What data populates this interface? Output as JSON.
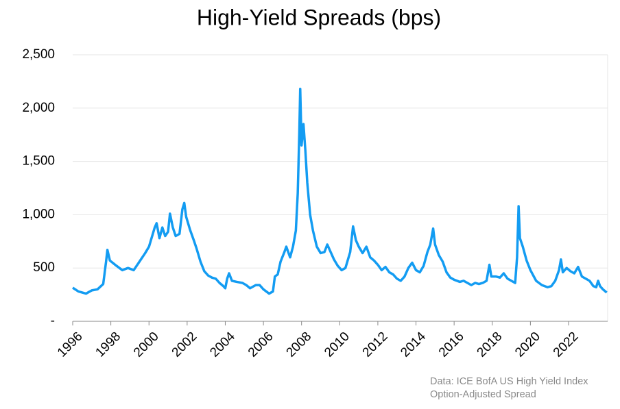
{
  "chart_data": {
    "type": "line",
    "title": "High-Yield Spreads (bps)",
    "notes": [
      "Data: ICE BofA US High Yield Index",
      "Option-Adjusted Spread"
    ],
    "xlim": [
      1996,
      2024.05
    ],
    "xticks": [
      1996,
      1998,
      2000,
      2002,
      2004,
      2006,
      2008,
      2010,
      2012,
      2014,
      2016,
      2018,
      2020,
      2022
    ],
    "ylim": [
      0,
      2500
    ],
    "yticks": [
      {
        "value": 0,
        "label": "-"
      },
      500,
      {
        "value": 1000,
        "label": "1,000"
      },
      {
        "value": 1500,
        "label": "1,500"
      },
      {
        "value": 2000,
        "label": "2,000"
      },
      {
        "value": 2500,
        "label": "2,500"
      }
    ],
    "grid": true,
    "series": [
      {
        "color": "#139cf2",
        "x": [
          1996.0,
          1996.3,
          1996.7,
          1997.0,
          1997.3,
          1997.6,
          1997.75,
          1997.82,
          1997.95,
          1998.3,
          1998.6,
          1998.9,
          1999.2,
          1999.5,
          1999.8,
          2000.0,
          2000.3,
          2000.4,
          2000.55,
          2000.7,
          2000.85,
          2001.0,
          2001.1,
          2001.25,
          2001.4,
          2001.6,
          2001.75,
          2001.85,
          2001.95,
          2002.15,
          2002.35,
          2002.5,
          2002.7,
          2002.9,
          2003.1,
          2003.3,
          2003.5,
          2003.7,
          2003.9,
          2004.0,
          2004.1,
          2004.2,
          2004.35,
          2004.6,
          2004.9,
          2005.1,
          2005.3,
          2005.6,
          2005.8,
          2006.0,
          2006.3,
          2006.5,
          2006.6,
          2006.75,
          2006.9,
          2007.1,
          2007.2,
          2007.4,
          2007.55,
          2007.7,
          2007.8,
          2007.88,
          2007.93,
          2008.0,
          2008.1,
          2008.2,
          2008.3,
          2008.45,
          2008.6,
          2008.8,
          2009.0,
          2009.2,
          2009.35,
          2009.5,
          2009.7,
          2009.9,
          2010.1,
          2010.3,
          2010.55,
          2010.7,
          2010.85,
          2011.0,
          2011.2,
          2011.4,
          2011.6,
          2011.8,
          2012.0,
          2012.2,
          2012.4,
          2012.6,
          2012.8,
          2013.0,
          2013.2,
          2013.4,
          2013.6,
          2013.8,
          2014.0,
          2014.2,
          2014.4,
          2014.6,
          2014.75,
          2014.9,
          2015.0,
          2015.2,
          2015.4,
          2015.6,
          2015.8,
          2016.0,
          2016.3,
          2016.5,
          2016.7,
          2016.9,
          2017.1,
          2017.3,
          2017.5,
          2017.7,
          2017.85,
          2017.95,
          2018.2,
          2018.4,
          2018.6,
          2018.8,
          2019.0,
          2019.2,
          2019.3,
          2019.38,
          2019.45,
          2019.6,
          2019.8,
          2020.0,
          2020.3,
          2020.6,
          2020.9,
          2021.1,
          2021.3,
          2021.5,
          2021.6,
          2021.7,
          2021.9,
          2022.1,
          2022.3,
          2022.5,
          2022.7,
          2022.9,
          2023.1,
          2023.3,
          2023.45,
          2023.55,
          2023.65,
          2023.8,
          2024.0
        ],
        "values": [
          315,
          280,
          260,
          290,
          300,
          350,
          560,
          670,
          570,
          520,
          480,
          500,
          480,
          560,
          640,
          700,
          880,
          920,
          780,
          880,
          800,
          840,
          1010,
          880,
          800,
          820,
          1050,
          1110,
          980,
          860,
          760,
          680,
          560,
          470,
          430,
          410,
          400,
          360,
          330,
          310,
          400,
          450,
          380,
          370,
          360,
          340,
          310,
          340,
          340,
          300,
          260,
          280,
          420,
          440,
          560,
          650,
          700,
          600,
          700,
          850,
          1200,
          1750,
          2180,
          1650,
          1850,
          1600,
          1300,
          1000,
          850,
          700,
          640,
          650,
          720,
          660,
          580,
          520,
          480,
          500,
          650,
          890,
          760,
          700,
          640,
          700,
          600,
          570,
          530,
          480,
          510,
          460,
          440,
          400,
          380,
          420,
          500,
          550,
          480,
          460,
          520,
          650,
          720,
          870,
          720,
          620,
          560,
          460,
          410,
          390,
          370,
          380,
          360,
          340,
          360,
          350,
          360,
          380,
          530,
          420,
          420,
          410,
          450,
          400,
          380,
          360,
          600,
          1080,
          780,
          700,
          570,
          480,
          380,
          340,
          320,
          330,
          380,
          480,
          580,
          460,
          500,
          470,
          450,
          510,
          420,
          400,
          380,
          330,
          320,
          380,
          330,
          300,
          270
        ]
      }
    ]
  }
}
